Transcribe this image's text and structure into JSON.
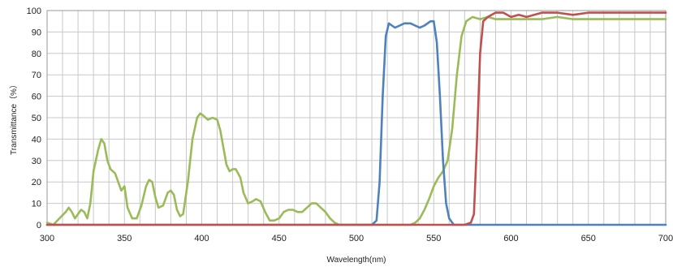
{
  "chart_data": {
    "type": "line",
    "xlabel": "Wavelength(nm)",
    "ylabel": "Transmittance（%）",
    "xlim": [
      300,
      700
    ],
    "ylim": [
      0,
      100
    ],
    "x_ticks": [
      "300",
      "350",
      "400",
      "450",
      "500",
      "550",
      "600",
      "650",
      "700"
    ],
    "y_ticks": [
      "0",
      "10",
      "20",
      "30",
      "40",
      "50",
      "60",
      "70",
      "80",
      "90",
      "100"
    ],
    "grid": true,
    "series": [
      {
        "color": "#4f81bd",
        "points": [
          [
            300,
            0
          ],
          [
            510,
            0
          ],
          [
            513,
            2
          ],
          [
            515,
            20
          ],
          [
            517,
            60
          ],
          [
            519,
            88
          ],
          [
            521,
            94
          ],
          [
            523,
            93
          ],
          [
            525,
            92
          ],
          [
            528,
            93
          ],
          [
            531,
            94
          ],
          [
            535,
            94
          ],
          [
            538,
            93
          ],
          [
            541,
            92
          ],
          [
            544,
            93
          ],
          [
            548,
            95
          ],
          [
            550,
            95
          ],
          [
            552,
            85
          ],
          [
            554,
            60
          ],
          [
            556,
            30
          ],
          [
            558,
            10
          ],
          [
            560,
            3
          ],
          [
            563,
            0
          ],
          [
            700,
            0
          ]
        ]
      },
      {
        "color": "#c0504d",
        "points": [
          [
            300,
            0
          ],
          [
            570,
            0
          ],
          [
            574,
            1
          ],
          [
            576,
            5
          ],
          [
            578,
            40
          ],
          [
            580,
            80
          ],
          [
            582,
            95
          ],
          [
            585,
            97
          ],
          [
            590,
            99
          ],
          [
            595,
            99
          ],
          [
            600,
            97
          ],
          [
            605,
            98
          ],
          [
            610,
            97
          ],
          [
            615,
            98
          ],
          [
            620,
            99
          ],
          [
            630,
            99
          ],
          [
            640,
            98
          ],
          [
            650,
            99
          ],
          [
            660,
            99
          ],
          [
            670,
            99
          ],
          [
            680,
            99
          ],
          [
            690,
            99
          ],
          [
            700,
            99
          ]
        ]
      },
      {
        "color": "#9bbb59",
        "points": [
          [
            300,
            1
          ],
          [
            304,
            0
          ],
          [
            308,
            3
          ],
          [
            312,
            6
          ],
          [
            314,
            8
          ],
          [
            316,
            6
          ],
          [
            318,
            3
          ],
          [
            320,
            5
          ],
          [
            322,
            7
          ],
          [
            324,
            6
          ],
          [
            326,
            3
          ],
          [
            328,
            10
          ],
          [
            330,
            25
          ],
          [
            333,
            35
          ],
          [
            335,
            40
          ],
          [
            337,
            38
          ],
          [
            339,
            30
          ],
          [
            341,
            26
          ],
          [
            344,
            24
          ],
          [
            346,
            20
          ],
          [
            348,
            16
          ],
          [
            350,
            18
          ],
          [
            352,
            8
          ],
          [
            355,
            3
          ],
          [
            358,
            3
          ],
          [
            361,
            9
          ],
          [
            364,
            18
          ],
          [
            366,
            21
          ],
          [
            368,
            20
          ],
          [
            370,
            13
          ],
          [
            372,
            8
          ],
          [
            375,
            9
          ],
          [
            378,
            15
          ],
          [
            380,
            16
          ],
          [
            382,
            14
          ],
          [
            384,
            7
          ],
          [
            386,
            4
          ],
          [
            388,
            5
          ],
          [
            391,
            20
          ],
          [
            394,
            40
          ],
          [
            397,
            50
          ],
          [
            399,
            52
          ],
          [
            401,
            51
          ],
          [
            404,
            49
          ],
          [
            407,
            50
          ],
          [
            410,
            49
          ],
          [
            412,
            44
          ],
          [
            414,
            36
          ],
          [
            416,
            28
          ],
          [
            418,
            25
          ],
          [
            420,
            26
          ],
          [
            422,
            26
          ],
          [
            425,
            22
          ],
          [
            427,
            15
          ],
          [
            430,
            10
          ],
          [
            433,
            11
          ],
          [
            435,
            12
          ],
          [
            438,
            11
          ],
          [
            441,
            6
          ],
          [
            444,
            2
          ],
          [
            447,
            2
          ],
          [
            450,
            3
          ],
          [
            453,
            6
          ],
          [
            456,
            7
          ],
          [
            459,
            7
          ],
          [
            462,
            6
          ],
          [
            465,
            6
          ],
          [
            468,
            8
          ],
          [
            471,
            10
          ],
          [
            474,
            10
          ],
          [
            477,
            8
          ],
          [
            480,
            6
          ],
          [
            483,
            3
          ],
          [
            486,
            1
          ],
          [
            489,
            0
          ],
          [
            500,
            0
          ],
          [
            530,
            0
          ],
          [
            535,
            0
          ],
          [
            538,
            1
          ],
          [
            541,
            3
          ],
          [
            544,
            7
          ],
          [
            547,
            12
          ],
          [
            550,
            18
          ],
          [
            553,
            22
          ],
          [
            556,
            25
          ],
          [
            559,
            30
          ],
          [
            562,
            45
          ],
          [
            565,
            70
          ],
          [
            568,
            88
          ],
          [
            571,
            95
          ],
          [
            575,
            97
          ],
          [
            580,
            96
          ],
          [
            585,
            97
          ],
          [
            590,
            96
          ],
          [
            595,
            96
          ],
          [
            600,
            96
          ],
          [
            610,
            96
          ],
          [
            620,
            96
          ],
          [
            630,
            97
          ],
          [
            640,
            96
          ],
          [
            650,
            96
          ],
          [
            660,
            96
          ],
          [
            670,
            96
          ],
          [
            680,
            96
          ],
          [
            690,
            96
          ],
          [
            700,
            96
          ]
        ]
      }
    ]
  }
}
